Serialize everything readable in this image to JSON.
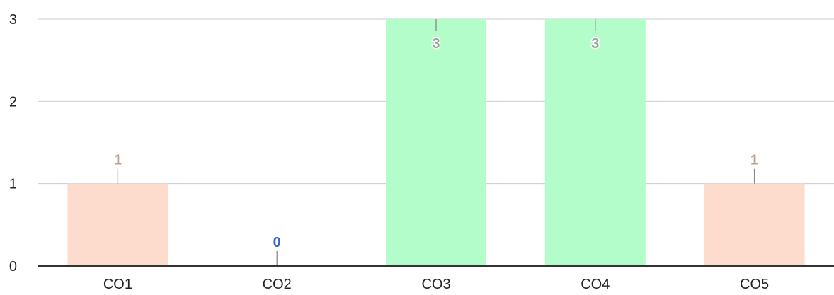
{
  "chart_data": {
    "type": "bar",
    "categories": [
      "CO1",
      "CO2",
      "CO3",
      "CO4",
      "CO5"
    ],
    "values": [
      1,
      0,
      3,
      3,
      1
    ],
    "value_labels": [
      "1",
      "0",
      "3",
      "3",
      "1"
    ],
    "bar_colors": [
      "#fddccd",
      "#3366cc",
      "#b3fdca",
      "#b3fdca",
      "#fddccd"
    ],
    "label_colors": [
      "#bc9e90",
      "#3366cc",
      "#93a898",
      "#93a898",
      "#bc9e90"
    ],
    "yticks": [
      "0",
      "1",
      "2",
      "3"
    ],
    "ylim": [
      0,
      3
    ],
    "grid": true,
    "legend": "none"
  }
}
